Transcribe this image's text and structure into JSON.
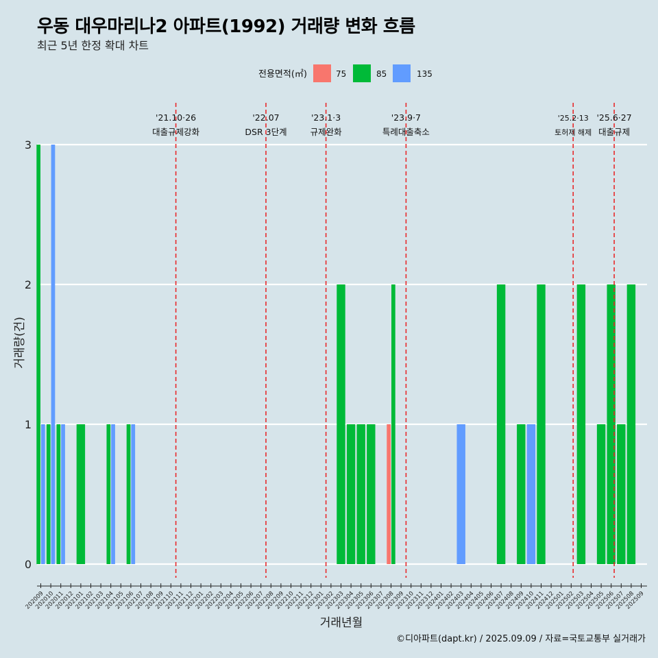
{
  "header": {
    "title": "우동 대우마리나2 아파트(1992) 거래량 변화 흐름",
    "subtitle": "최근 5년 한정 확대 차트"
  },
  "caption": "©디아파트(dapt.kr) / 2025.09.09 / 자료=국토교통부 실거래가",
  "chart_data": {
    "type": "bar",
    "title": "우동 대우마리나2 아파트(1992) 거래량 변화 흐름",
    "subtitle": "최근 5년 한정 확대 차트",
    "xlabel": "거래년월",
    "ylabel": "거래량(건)",
    "ylim": [
      0,
      3
    ],
    "yticks": [
      0,
      1,
      2,
      3
    ],
    "legend": {
      "title": "전용면적(㎡)",
      "position": "top",
      "colors": {
        "75": "#f8766d",
        "85": "#00ba38",
        "135": "#619cff"
      }
    },
    "categories": [
      "202009",
      "202010",
      "202011",
      "202012",
      "202101",
      "202102",
      "202103",
      "202104",
      "202105",
      "202106",
      "202107",
      "202108",
      "202109",
      "202110",
      "202111",
      "202112",
      "202201",
      "202202",
      "202203",
      "202204",
      "202205",
      "202206",
      "202207",
      "202208",
      "202209",
      "202210",
      "202211",
      "202212",
      "202301",
      "202302",
      "202303",
      "202304",
      "202305",
      "202306",
      "202307",
      "202308",
      "202309",
      "202310",
      "202311",
      "202312",
      "202401",
      "202402",
      "202403",
      "202404",
      "202405",
      "202406",
      "202407",
      "202408",
      "202409",
      "202410",
      "202411",
      "202412",
      "202501",
      "202502",
      "202503",
      "202504",
      "202505",
      "202506",
      "202507",
      "202508",
      "202509"
    ],
    "series": [
      {
        "name": "75",
        "values": [
          0,
          0,
          0,
          0,
          0,
          0,
          0,
          0,
          0,
          0,
          0,
          0,
          0,
          0,
          0,
          0,
          0,
          0,
          0,
          0,
          0,
          0,
          0,
          0,
          0,
          0,
          0,
          0,
          0,
          0,
          0,
          0,
          0,
          0,
          0,
          1,
          0,
          0,
          0,
          0,
          0,
          0,
          0,
          0,
          0,
          0,
          0,
          0,
          0,
          0,
          0,
          0,
          0,
          0,
          0,
          0,
          0,
          0,
          0,
          0,
          0
        ]
      },
      {
        "name": "85",
        "values": [
          3,
          1,
          1,
          0,
          1,
          0,
          0,
          1,
          0,
          1,
          0,
          0,
          0,
          0,
          0,
          0,
          0,
          0,
          0,
          0,
          0,
          0,
          0,
          0,
          0,
          0,
          0,
          0,
          0,
          0,
          2,
          1,
          1,
          1,
          0,
          2,
          0,
          0,
          0,
          0,
          0,
          0,
          0,
          0,
          0,
          0,
          2,
          0,
          1,
          0,
          2,
          0,
          0,
          0,
          2,
          0,
          1,
          2,
          1,
          2,
          0
        ]
      },
      {
        "name": "135",
        "values": [
          1,
          3,
          1,
          0,
          0,
          0,
          0,
          1,
          0,
          1,
          0,
          0,
          0,
          0,
          0,
          0,
          0,
          0,
          0,
          0,
          0,
          0,
          0,
          0,
          0,
          0,
          0,
          0,
          0,
          0,
          0,
          0,
          0,
          0,
          0,
          0,
          0,
          0,
          0,
          0,
          0,
          0,
          1,
          0,
          0,
          0,
          0,
          0,
          0,
          1,
          0,
          0,
          0,
          0,
          0,
          0,
          0,
          0,
          0,
          0,
          0
        ]
      }
    ],
    "annotations": [
      {
        "x": 13.5,
        "date": "'21.10·26",
        "label": "대출규제강화",
        "small": false
      },
      {
        "x": 22.5,
        "date": "'22.07",
        "label": "DSR 3단계",
        "small": false
      },
      {
        "x": 28.5,
        "date": "'23.1·3",
        "label": "규제완화",
        "small": false
      },
      {
        "x": 36.5,
        "date": "'23.9·7",
        "label": "특례대출축소",
        "small": false
      },
      {
        "x": 53.2,
        "date": "'25.2·13",
        "label": "토허제 해제",
        "small": true
      },
      {
        "x": 57.3,
        "date": "'25.6·27",
        "label": "대출규제",
        "small": false
      }
    ]
  }
}
